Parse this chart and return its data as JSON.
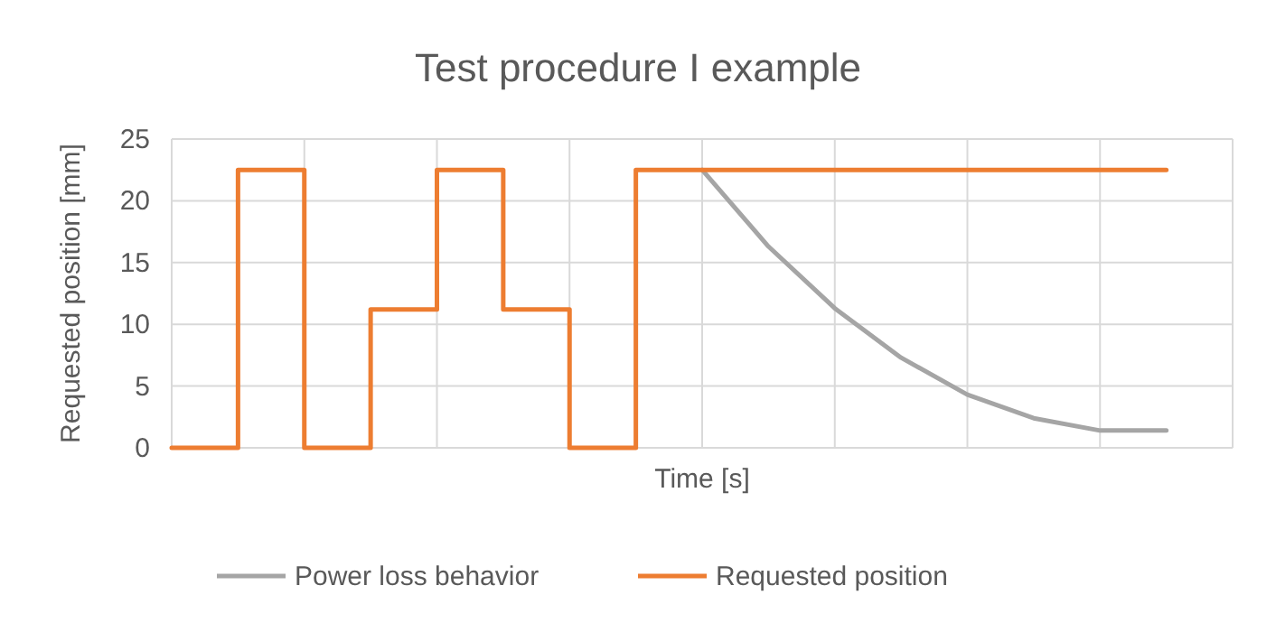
{
  "chart_data": {
    "type": "step",
    "title": "Test procedure I example",
    "xlabel": "Time [s]",
    "ylabel": "Requested position [mm]",
    "categories": [
      null,
      null,
      null,
      null,
      null,
      null,
      null,
      null,
      null,
      null,
      null,
      null,
      null,
      null,
      null,
      null
    ],
    "series": [
      {
        "name": "Power loss behavior",
        "type": "line",
        "color": "#a5a5a5",
        "values": [
          null,
          null,
          null,
          null,
          null,
          null,
          null,
          null,
          22.5,
          16.3,
          11.3,
          7.3,
          4.3,
          2.4,
          1.4,
          1.4
        ]
      },
      {
        "name": "Requested position",
        "color": "#ed7d31",
        "values": [
          0,
          22.5,
          0,
          11.2,
          22.5,
          11.2,
          0,
          22.5,
          22.5,
          22.5,
          22.5,
          22.5,
          22.5,
          22.5,
          22.5,
          22.5
        ]
      }
    ],
    "ylim": [
      0,
      25
    ],
    "yticks": [
      0,
      5,
      10,
      15,
      20,
      25
    ],
    "grid": true,
    "legend": "bottom"
  }
}
